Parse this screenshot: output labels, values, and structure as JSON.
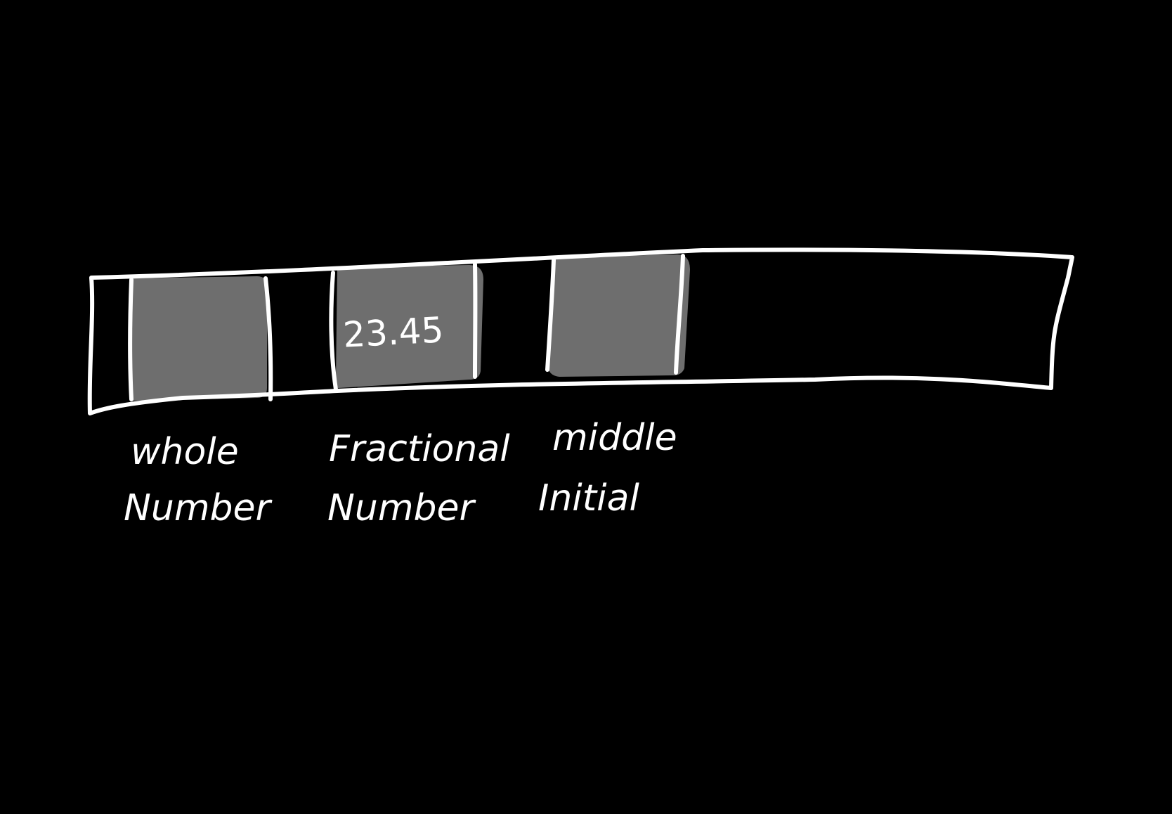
{
  "diagram": {
    "background_color": "#000000",
    "stroke_color": "#ffffff",
    "cell_fill_color": "#6e6e6e",
    "cells": [
      {
        "value": "",
        "label_line1": "whole",
        "label_line2": "Number"
      },
      {
        "value": "23.45",
        "label_line1": "Fractional",
        "label_line2": "Number"
      },
      {
        "value": "",
        "label_line1": "middle",
        "label_line2": "Initial"
      }
    ]
  }
}
